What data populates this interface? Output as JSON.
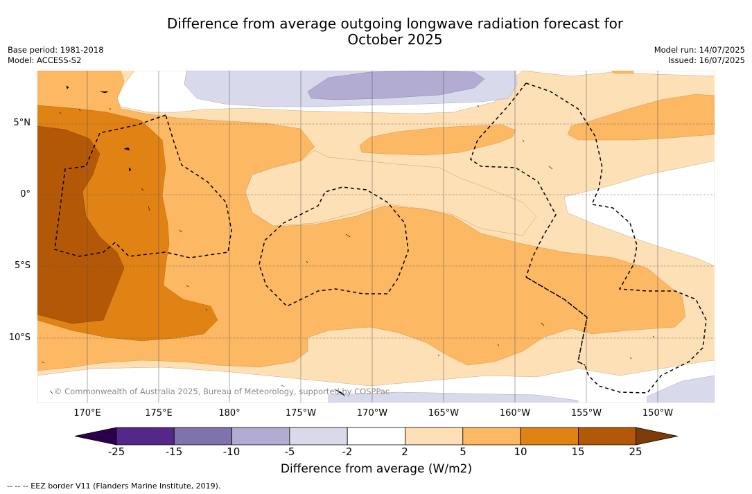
{
  "title": {
    "line1": "Difference from average outgoing longwave radiation forecast for",
    "line2": "October 2025"
  },
  "meta_left": {
    "base_period": "Base period: 1981-2018",
    "model": "Model: ACCESS-S2"
  },
  "meta_right": {
    "model_run": "Model run: 14/07/2025",
    "issued": "Issued: 16/07/2025"
  },
  "map": {
    "latitude_labels": [
      "5°N",
      "0°",
      "5°S",
      "10°S"
    ],
    "longitude_labels": [
      "170°E",
      "175°E",
      "180°",
      "175°W",
      "170°W",
      "165°W",
      "160°W",
      "155°W",
      "150°W"
    ],
    "copyright": "© Commonwealth of Australia 2025, Bureau of Meteorology, supported by COSPPac",
    "footnote": "--  --  -- EEZ border V11 (Flanders Marine Institute, 2019)."
  },
  "colorbar": {
    "label": "Difference from average (W/m2)",
    "ticks": [
      "-25",
      "-15",
      "-10",
      "-5",
      "-2",
      "2",
      "5",
      "10",
      "15",
      "25"
    ],
    "colors": {
      "below_min": "#2d004b",
      "bins": [
        "#542788",
        "#8073ac",
        "#b2abd2",
        "#d8daeb",
        "#ffffff",
        "#fee0b6",
        "#fdb863",
        "#e08214",
        "#b35806"
      ],
      "above_max": "#7f3b08"
    }
  }
}
